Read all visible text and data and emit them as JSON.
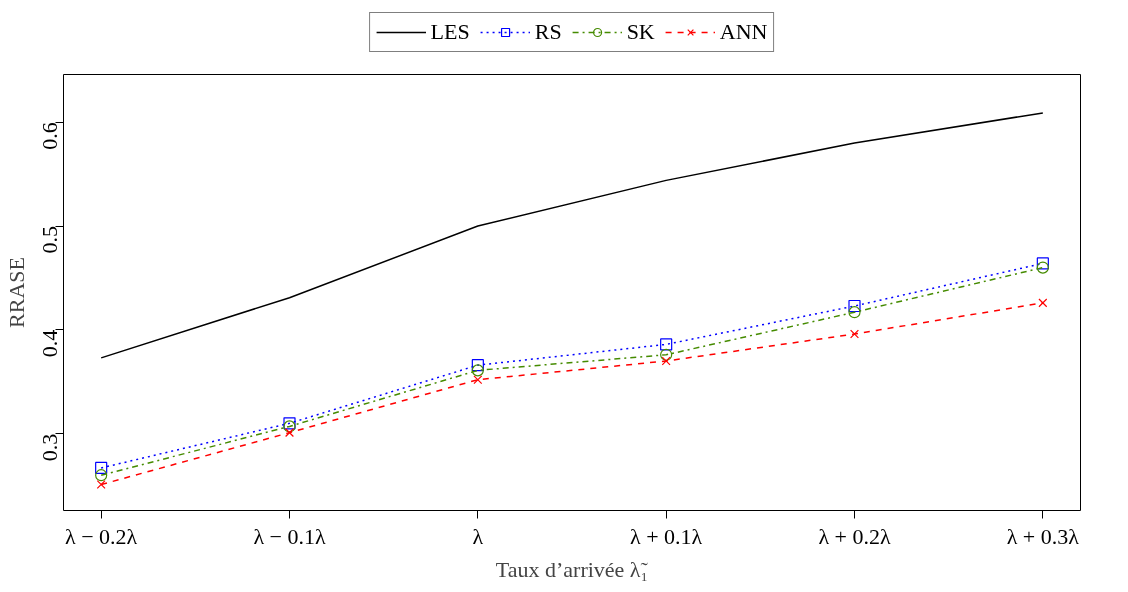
{
  "chart_data": {
    "type": "line",
    "xlabel": "Taux d’arrivée λ̃₁",
    "ylabel": "RRASE",
    "categories": [
      "λ − 0.2λ",
      "λ − 0.1λ",
      "λ",
      "λ + 0.1λ",
      "λ + 0.2λ",
      "λ + 0.3λ"
    ],
    "series": [
      {
        "name": "LES",
        "color": "#000000",
        "line_style": "solid",
        "marker": "none",
        "values": [
          0.373,
          0.431,
          0.5,
          0.544,
          0.58,
          0.609
        ]
      },
      {
        "name": "RS",
        "color": "#0000ff",
        "line_style": "dotted",
        "marker": "square",
        "values": [
          0.267,
          0.31,
          0.366,
          0.386,
          0.423,
          0.464
        ]
      },
      {
        "name": "SK",
        "color": "#458b00",
        "line_style": "dashdot",
        "marker": "circle",
        "values": [
          0.26,
          0.307,
          0.361,
          0.376,
          0.417,
          0.46
        ]
      },
      {
        "name": "ANN",
        "color": "#ff0000",
        "line_style": "dashed",
        "marker": "cross",
        "values": [
          0.251,
          0.301,
          0.352,
          0.37,
          0.396,
          0.426
        ]
      }
    ],
    "ylim": [
      0.226,
      0.646
    ],
    "yticks": [
      0.3,
      0.4,
      0.5,
      0.6
    ],
    "grid": false,
    "legend": "top"
  }
}
